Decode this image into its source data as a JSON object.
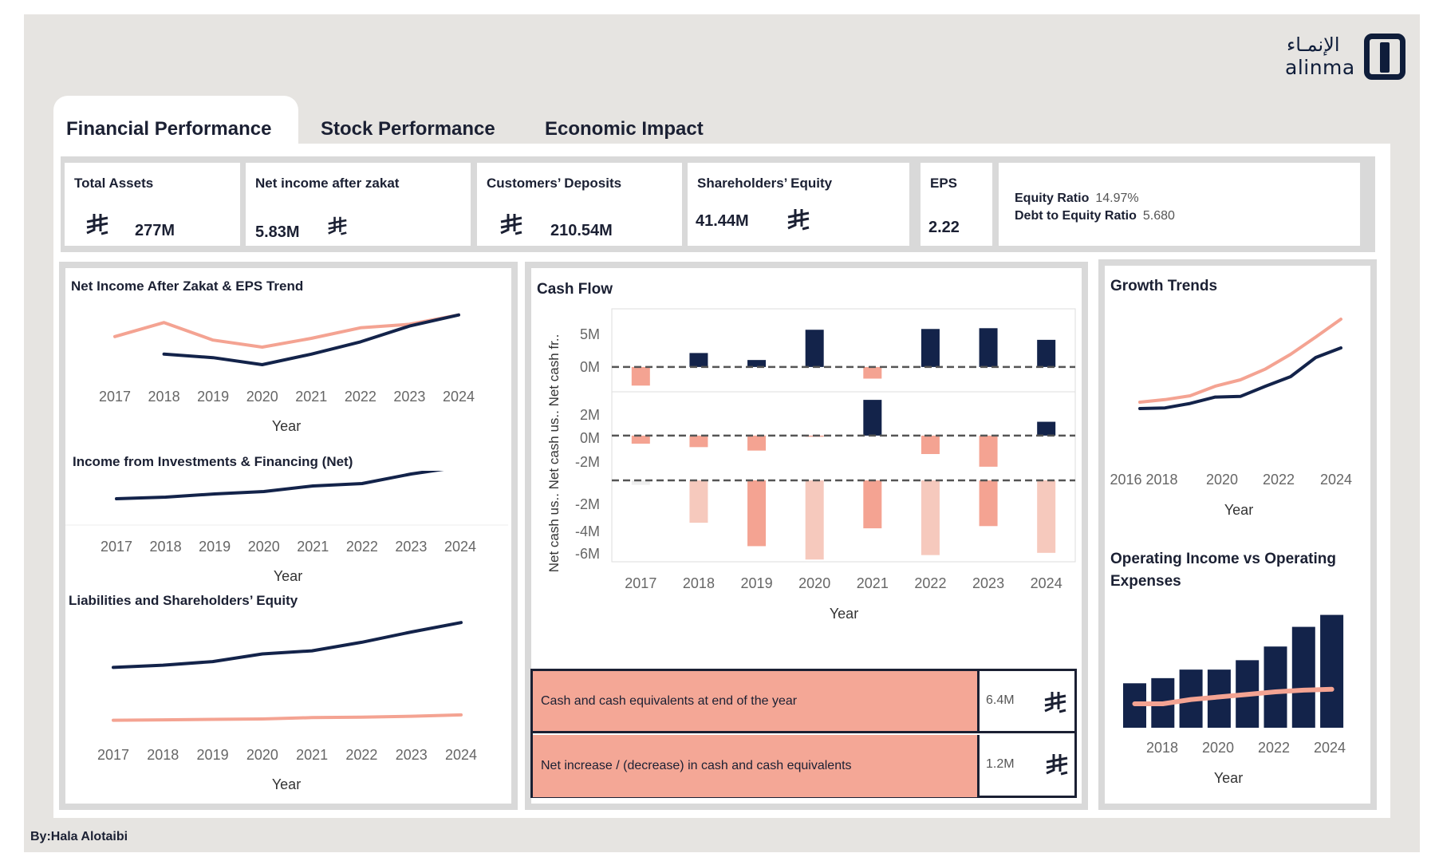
{
  "logo": {
    "arabic": "الإنمـاء",
    "english": "alinma",
    "icon": "alinma-logo-icon"
  },
  "tabs": [
    {
      "label": "Financial Performance",
      "active": true
    },
    {
      "label": "Stock Performance",
      "active": false
    },
    {
      "label": "Economic Impact",
      "active": false
    }
  ],
  "kpis": {
    "total_assets": {
      "label": "Total Assets",
      "value": "277M"
    },
    "net_income": {
      "label": "Net income after zakat",
      "value": "5.83M"
    },
    "deposits": {
      "label": "Customers’ Deposits",
      "value": "210.54M"
    },
    "equity": {
      "label": "Shareholders’ Equity",
      "value": "41.44M"
    },
    "eps": {
      "label": "EPS",
      "value": "2.22"
    },
    "ratios": {
      "equity_ratio_label": "Equity Ratio",
      "equity_ratio_value": "14.97%",
      "debt_equity_label": "Debt to Equity Ratio",
      "debt_equity_value": "5.680"
    }
  },
  "currency_icon": "saudi-riyal-symbol-icon",
  "colors": {
    "navy": "#13234a",
    "salmon": "#f4a392",
    "light_salmon": "#f6c9bd"
  },
  "chart_data": [
    {
      "id": "net_income_eps",
      "type": "line",
      "title": "Net Income After Zakat & EPS Trend",
      "xlabel": "Year",
      "categories": [
        "2017",
        "2018",
        "2019",
        "2020",
        "2021",
        "2022",
        "2023",
        "2024"
      ],
      "series": [
        {
          "color": "#f4a392",
          "values": [
            4.6,
            5.4,
            4.4,
            4.0,
            4.5,
            5.1,
            5.3,
            5.83
          ]
        },
        {
          "color": "#13234a",
          "values": [
            null,
            3.6,
            3.4,
            3.0,
            3.6,
            4.3,
            5.2,
            5.83
          ]
        }
      ],
      "ylim": [
        2.5,
        6.5
      ]
    },
    {
      "id": "investments_financing",
      "type": "line",
      "title": "Income from Investments & Financing (Net)",
      "xlabel": "Year",
      "categories": [
        "2017",
        "2018",
        "2019",
        "2020",
        "2021",
        "2022",
        "2023",
        "2024"
      ],
      "series": [
        {
          "color": "#13234a",
          "values": [
            4.0,
            4.2,
            4.6,
            4.9,
            5.6,
            5.9,
            7.1,
            8.0
          ]
        }
      ],
      "ylim": [
        0,
        10
      ]
    },
    {
      "id": "liabilities_equity",
      "type": "line",
      "title": "Liabilities and Shareholders’ Equity",
      "xlabel": "Year",
      "categories": [
        "2017",
        "2018",
        "2019",
        "2020",
        "2021",
        "2022",
        "2023",
        "2024"
      ],
      "series": [
        {
          "color": "#13234a",
          "values": [
            140,
            145,
            153,
            170,
            177,
            196,
            219,
            240
          ]
        },
        {
          "color": "#f4a392",
          "values": [
            22,
            23,
            24,
            25,
            28,
            29,
            31,
            34
          ]
        }
      ],
      "ylim": [
        0,
        260
      ]
    },
    {
      "id": "cash_flow",
      "type": "bar",
      "title": "Cash Flow",
      "xlabel": "Year",
      "ylabel": "Net cash us.. Net cash us.. Net cash fr..",
      "categories": [
        "2017",
        "2018",
        "2019",
        "2020",
        "2021",
        "2022",
        "2023",
        "2024"
      ],
      "panels": [
        {
          "ticks": [
            "5M",
            "0M"
          ],
          "ylim": [
            -3.2,
            7.5
          ],
          "values": [
            -2.4,
            1.8,
            0.9,
            4.8,
            -1.5,
            4.9,
            5.0,
            3.5
          ]
        },
        {
          "ticks": [
            "2M",
            "0M",
            "-2M"
          ],
          "ylim": [
            -3.4,
            3.8
          ],
          "values": [
            -0.7,
            -1.0,
            -1.3,
            -0.1,
            3.1,
            -1.6,
            -2.7,
            1.2
          ]
        },
        {
          "ticks": [
            "-2M",
            "-4M",
            "-6M"
          ],
          "ylim": [
            -7.3,
            0
          ],
          "values": [
            -0.4,
            -3.8,
            -5.9,
            -7.1,
            -4.3,
            -6.7,
            -4.1,
            -6.5
          ]
        }
      ]
    },
    {
      "id": "growth_trends",
      "type": "line",
      "title": "Growth Trends",
      "xlabel": "Year",
      "tick_labels": [
        "2016 2018",
        "2020",
        "2022",
        "2024"
      ],
      "categories": [
        "2016",
        "2017",
        "2018",
        "2019",
        "2020",
        "2021",
        "2022",
        "2023",
        "2024"
      ],
      "series": [
        {
          "color": "#f4a392",
          "values": [
            20,
            24,
            30,
            45,
            55,
            72,
            95,
            122,
            150
          ]
        },
        {
          "color": "#13234a",
          "values": [
            10,
            11,
            18,
            28,
            29,
            45,
            60,
            90,
            105
          ]
        }
      ],
      "ylim": [
        0,
        160
      ]
    },
    {
      "id": "operating_income_expenses",
      "type": "bar",
      "title": "Operating Income vs Operating Expenses",
      "xlabel": "Year",
      "tick_labels": [
        "2018",
        "2020",
        "2022",
        "2024"
      ],
      "categories": [
        "2017",
        "2018",
        "2019",
        "2020",
        "2021",
        "2022",
        "2023",
        "2024"
      ],
      "series": [
        {
          "color": "#13234a",
          "values": [
            52,
            58,
            68,
            68,
            79,
            95,
            118,
            132
          ]
        },
        {
          "color": "#f4a392",
          "values": [
            28,
            28,
            33,
            36,
            39,
            42,
            44,
            45
          ]
        }
      ],
      "ylim": [
        0,
        140
      ]
    }
  ],
  "cash_summary": [
    {
      "label": "Cash and cash equivalents at end of the year",
      "value": "6.4M"
    },
    {
      "label": "Net increase / (decrease) in cash and cash equivalents",
      "value": "1.2M"
    }
  ],
  "footer": "By:Hala Alotaibi"
}
